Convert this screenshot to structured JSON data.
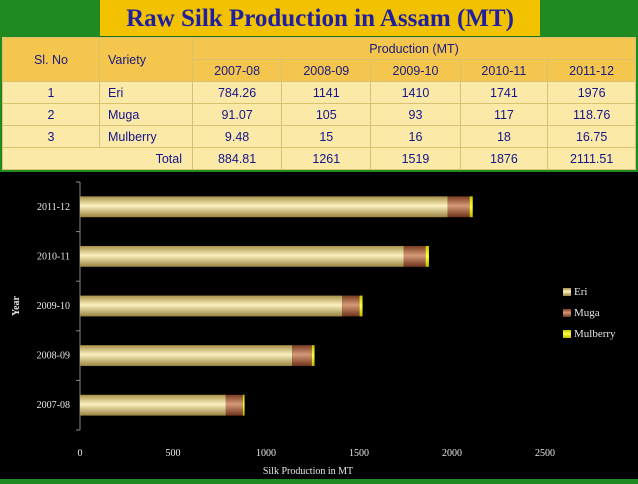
{
  "title": "Raw Silk Production  in  Assam (MT)",
  "table": {
    "col_slno": "Sl. No",
    "col_variety": "Variety",
    "col_production": "Production (MT)",
    "years": [
      "2007-08",
      "2008-09",
      "2009-10",
      "2010-11",
      "2011-12"
    ],
    "rows": [
      {
        "slno": "1",
        "variety": "Eri",
        "values": [
          "784.26",
          "1141",
          "1410",
          "1741",
          "1976"
        ]
      },
      {
        "slno": "2",
        "variety": "Muga",
        "values": [
          "91.07",
          "105",
          "93",
          "117",
          "118.76"
        ]
      },
      {
        "slno": "3",
        "variety": "Mulberry",
        "values": [
          "9.48",
          "15",
          "16",
          "18",
          "16.75"
        ]
      }
    ],
    "total_label": "Total",
    "totals": [
      "884.81",
      "1261",
      "1519",
      "1876",
      "2111.51"
    ]
  },
  "chart_data": {
    "type": "bar",
    "orientation": "horizontal",
    "stacked": true,
    "categories": [
      "2007-08",
      "2008-09",
      "2009-10",
      "2010-11",
      "2011-12"
    ],
    "series": [
      {
        "name": "Eri",
        "values": [
          784.26,
          1141,
          1410,
          1741,
          1976
        ],
        "color": "#e8d890"
      },
      {
        "name": "Muga",
        "values": [
          91.07,
          105,
          93,
          117,
          118.76
        ],
        "color": "#b8643a"
      },
      {
        "name": "Mulberry",
        "values": [
          9.48,
          15,
          16,
          18,
          16.75
        ],
        "color": "#ffff00"
      }
    ],
    "xlabel": "Silk Production in MT",
    "ylabel": "Year",
    "xlim": [
      0,
      2500
    ],
    "xticks": [
      0,
      500,
      1000,
      1500,
      2000,
      2500
    ],
    "legend": "right",
    "grid": false
  }
}
